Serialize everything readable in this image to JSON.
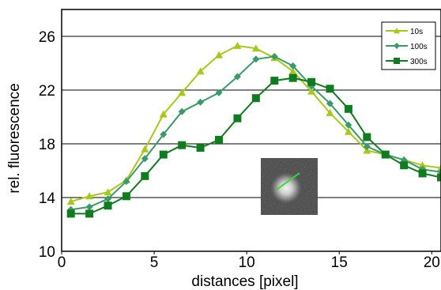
{
  "chart_data": {
    "type": "line",
    "xlabel": "distances [pixel]",
    "ylabel": "rel. fluorescence",
    "xlim": [
      0,
      20.5
    ],
    "ylim": [
      10,
      28
    ],
    "xticks": [
      "0",
      "5",
      "10",
      "15",
      "20"
    ],
    "yticks": [
      "10",
      "14",
      "18",
      "22",
      "26"
    ],
    "grid": "horizontal",
    "legend_position": "top-right",
    "series": [
      {
        "name": "10s",
        "color": "#a6c819",
        "marker": "triangle",
        "x": [
          0.5,
          1.5,
          2.5,
          3.5,
          4.5,
          5.5,
          6.5,
          7.5,
          8.5,
          9.5,
          10.5,
          11.5,
          12.5,
          13.5,
          14.5,
          15.5,
          16.5,
          17.5,
          18.5,
          19.5,
          20.5
        ],
        "y": [
          13.7,
          14.1,
          14.4,
          15.3,
          17.6,
          20.2,
          21.8,
          23.4,
          24.6,
          25.3,
          25.1,
          24.4,
          23.4,
          21.9,
          20.3,
          18.9,
          17.5,
          17.2,
          16.8,
          16.4,
          16.2
        ]
      },
      {
        "name": "100s",
        "color": "#3a9a6a",
        "marker": "diamond",
        "x": [
          0.5,
          1.5,
          2.5,
          3.5,
          4.5,
          5.5,
          6.5,
          7.5,
          8.5,
          9.5,
          10.5,
          11.5,
          12.5,
          13.5,
          14.5,
          15.5,
          16.5,
          17.5,
          18.5,
          19.5,
          20.5
        ],
        "y": [
          13.1,
          13.3,
          13.9,
          15.2,
          16.9,
          18.7,
          20.4,
          21.1,
          21.8,
          23.0,
          24.3,
          24.5,
          23.8,
          22.3,
          21.0,
          19.4,
          17.8,
          17.2,
          16.8,
          16.1,
          15.9
        ]
      },
      {
        "name": "300s",
        "color": "#0f7d1f",
        "marker": "square",
        "x": [
          0.5,
          1.5,
          2.5,
          3.5,
          4.5,
          5.5,
          6.5,
          7.5,
          8.5,
          9.5,
          10.5,
          11.5,
          12.5,
          13.5,
          14.5,
          15.5,
          16.5,
          17.5,
          18.5,
          19.5,
          20.5
        ],
        "y": [
          12.8,
          12.8,
          13.4,
          14.1,
          15.6,
          17.2,
          17.9,
          17.7,
          18.3,
          19.9,
          21.4,
          22.7,
          22.9,
          22.6,
          22.1,
          20.6,
          18.5,
          17.2,
          16.4,
          15.8,
          15.5
        ]
      }
    ]
  }
}
